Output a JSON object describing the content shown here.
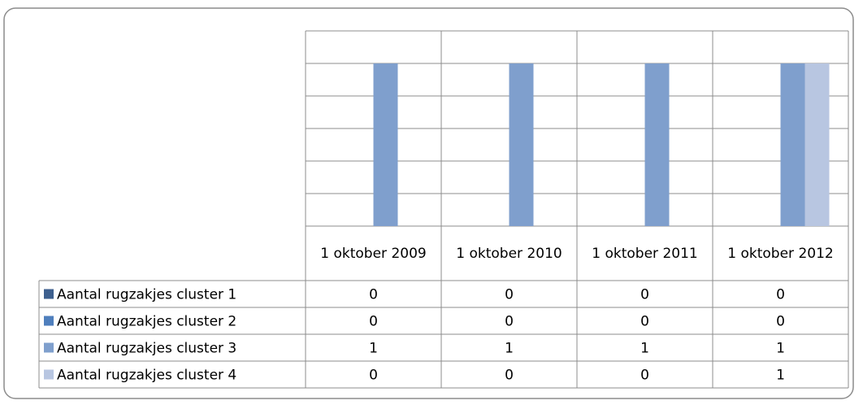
{
  "chart_data": {
    "type": "bar",
    "categories": [
      "1 oktober 2009",
      "1 oktober 2010",
      "1 oktober 2011",
      "1 oktober 2012"
    ],
    "series": [
      {
        "name": "Aantal rugzakjes cluster 1",
        "color": "#3d5f8e",
        "values": [
          0,
          0,
          0,
          0
        ]
      },
      {
        "name": "Aantal rugzakjes cluster 2",
        "color": "#4f7fbd",
        "values": [
          0,
          0,
          0,
          0
        ]
      },
      {
        "name": "Aantal rugzakjes cluster 3",
        "color": "#7f9fcd",
        "values": [
          1,
          1,
          1,
          1
        ]
      },
      {
        "name": "Aantal rugzakjes cluster 4",
        "color": "#b8c6e1",
        "values": [
          0,
          0,
          0,
          1
        ]
      }
    ],
    "ylim": [
      0,
      1.2
    ],
    "yticks": [
      0,
      0.2,
      0.4,
      0.6,
      0.8,
      1,
      1.2
    ],
    "grid": true
  }
}
